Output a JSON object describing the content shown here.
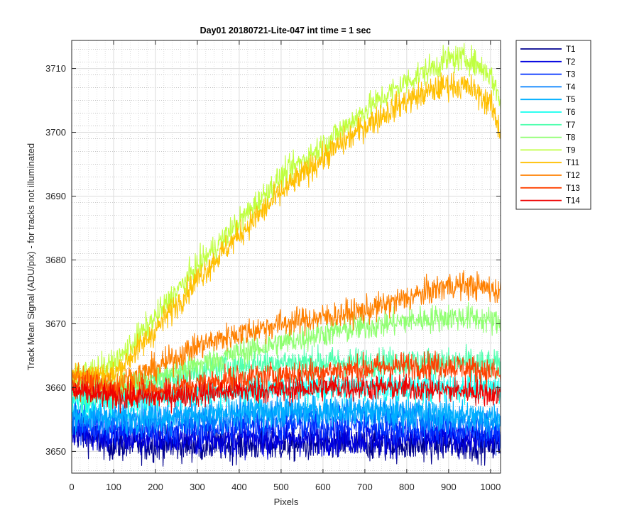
{
  "chart_data": {
    "type": "line",
    "title": "Day01 20180721-Lite-047 int time = 1 sec",
    "xlabel": "Pixels",
    "ylabel": "Track Mean Signal (ADU/pix) - for tracks not illuminated",
    "xlim": [
      0,
      1024
    ],
    "ylim": [
      3646.6,
      3714.4
    ],
    "xticks": [
      0,
      100,
      200,
      300,
      400,
      500,
      600,
      700,
      800,
      900,
      1000
    ],
    "xtick_labels": [
      "0",
      "100",
      "200",
      "300",
      "400",
      "500",
      "600",
      "700",
      "800",
      "900",
      "1000"
    ],
    "yticks": [
      3650,
      3660,
      3670,
      3680,
      3690,
      3700,
      3710
    ],
    "ytick_labels": [
      "3650",
      "3660",
      "3670",
      "3680",
      "3690",
      "3700",
      "3710"
    ],
    "grid": "major and minor",
    "legend_position": "outside-top-right",
    "noise_note": "each trace is noisy pixel-to-pixel; listed values are the underlying trend",
    "x": [
      0,
      100,
      200,
      300,
      400,
      500,
      600,
      700,
      800,
      900,
      950,
      1000,
      1024
    ],
    "series": [
      {
        "name": "T1",
        "color": "#00008f",
        "noise": 1.8,
        "values": [
          3653,
          3651,
          3651,
          3651,
          3651,
          3651,
          3651,
          3651,
          3651,
          3651,
          3651,
          3651,
          3651
        ]
      },
      {
        "name": "T2",
        "color": "#0000df",
        "noise": 1.8,
        "values": [
          3653.5,
          3652,
          3652,
          3652,
          3652,
          3652,
          3652,
          3652,
          3652,
          3652,
          3652,
          3652,
          3652
        ]
      },
      {
        "name": "T3",
        "color": "#0030ff",
        "noise": 1.7,
        "values": [
          3654.5,
          3653.5,
          3653.5,
          3653.5,
          3654,
          3654,
          3654,
          3654,
          3653.5,
          3653.5,
          3653,
          3653,
          3653
        ]
      },
      {
        "name": "T4",
        "color": "#0080ff",
        "noise": 1.7,
        "values": [
          3655.5,
          3655,
          3655,
          3655,
          3655.5,
          3656,
          3656,
          3656,
          3655.5,
          3655,
          3655,
          3654.5,
          3654.5
        ]
      },
      {
        "name": "T5",
        "color": "#00afff",
        "noise": 1.7,
        "values": [
          3656,
          3655.5,
          3655.5,
          3656,
          3656,
          3656.5,
          3656.5,
          3656.5,
          3656,
          3656,
          3655.5,
          3655.5,
          3655.5
        ]
      },
      {
        "name": "T6",
        "color": "#10ffef",
        "noise": 1.6,
        "values": [
          3658.5,
          3658,
          3658.5,
          3659,
          3659.5,
          3660,
          3660,
          3660,
          3660,
          3660,
          3660,
          3660,
          3660
        ]
      },
      {
        "name": "T7",
        "color": "#50ffaf",
        "noise": 1.6,
        "values": [
          3659,
          3659,
          3661,
          3662.5,
          3663.5,
          3664,
          3664,
          3664,
          3664,
          3664,
          3664,
          3663.5,
          3663.5
        ]
      },
      {
        "name": "T8",
        "color": "#8fff70",
        "noise": 1.5,
        "values": [
          3661,
          3660,
          3661.5,
          3663.5,
          3665.5,
          3667,
          3668.5,
          3669.5,
          3670.5,
          3671,
          3671,
          3670.5,
          3670
        ]
      },
      {
        "name": "T9",
        "color": "#bfff40",
        "noise": 1.5,
        "values": [
          3662,
          3663.5,
          3671,
          3679,
          3686,
          3693,
          3698,
          3703.5,
          3708,
          3711.5,
          3711.5,
          3709,
          3705
        ]
      },
      {
        "name": "T11",
        "color": "#ffbf00",
        "noise": 1.5,
        "values": [
          3662,
          3662,
          3669,
          3677,
          3684,
          3690.5,
          3696,
          3701,
          3705,
          3707.5,
          3707,
          3704.5,
          3700
        ]
      },
      {
        "name": "T12",
        "color": "#ff8000",
        "noise": 1.5,
        "values": [
          3662,
          3660.5,
          3663,
          3666.5,
          3668.5,
          3670,
          3671,
          3672,
          3674,
          3676,
          3676,
          3675.5,
          3675
        ]
      },
      {
        "name": "T13",
        "color": "#ff4000",
        "noise": 1.5,
        "values": [
          3660.5,
          3659.5,
          3659.5,
          3660.5,
          3661.5,
          3662,
          3662.5,
          3663,
          3663.5,
          3663.5,
          3663,
          3662.5,
          3662
        ]
      },
      {
        "name": "T14",
        "color": "#ef0000",
        "noise": 1.4,
        "values": [
          3659.5,
          3658.5,
          3658.5,
          3659,
          3659.5,
          3659.5,
          3660,
          3660,
          3660,
          3659.5,
          3659.5,
          3659,
          3659
        ]
      }
    ]
  }
}
